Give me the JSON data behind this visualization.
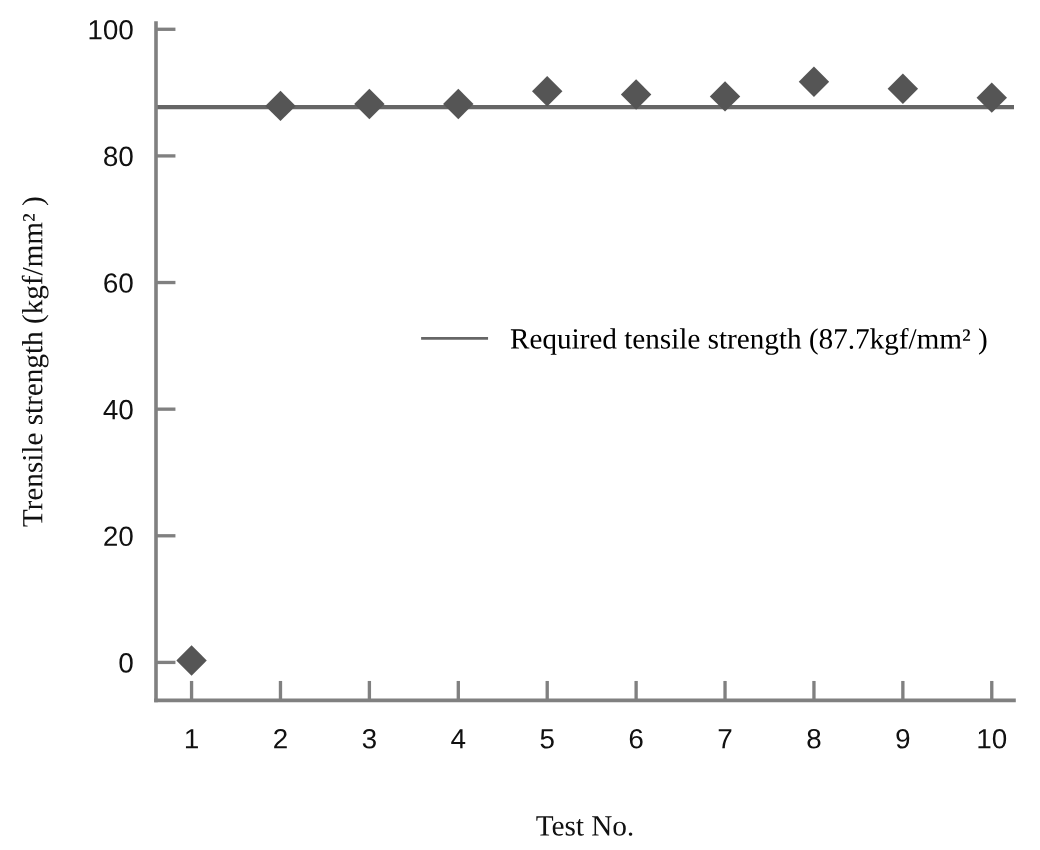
{
  "chart_data": {
    "type": "scatter",
    "xlabel": "Test No.",
    "ylabel": "Trensile strength (kgf/mm² )",
    "x": [
      1,
      2,
      3,
      4,
      5,
      6,
      7,
      8,
      9,
      10
    ],
    "series": [
      {
        "color": "#555555",
        "values": [
          0.3,
          87.9,
          88.2,
          88.2,
          90.2,
          89.7,
          89.4,
          91.7,
          90.6,
          89.2
        ]
      }
    ],
    "xlim": [
      0.6,
      10.25
    ],
    "xticks": [
      1,
      2,
      3,
      4,
      5,
      6,
      7,
      8,
      9,
      10
    ],
    "ylim": [
      -6,
      101
    ],
    "yticks": [
      0,
      20,
      40,
      60,
      80,
      100
    ],
    "ref_lines": [
      {
        "axis": "y",
        "value": 87.7,
        "label": "Required tensile strength (87.7kgf/mm² )",
        "color": "#666666",
        "line_style": "solid"
      }
    ],
    "marker": "diamond",
    "legend": "center right",
    "grid": false
  }
}
